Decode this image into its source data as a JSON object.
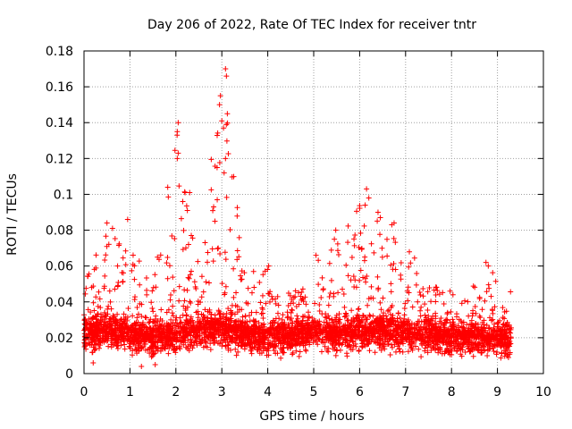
{
  "chart_data": {
    "type": "scatter",
    "title": "Day 206 of 2022, Rate Of TEC Index for receiver tntr",
    "xlabel": "GPS time / hours",
    "ylabel": "ROTI / TECUs",
    "xlim": [
      0,
      10
    ],
    "ylim": [
      0,
      0.18
    ],
    "xticks": [
      0,
      1,
      2,
      3,
      4,
      5,
      6,
      7,
      8,
      9,
      10
    ],
    "yticks": [
      0,
      0.02,
      0.04,
      0.06,
      0.08,
      0.1,
      0.12,
      0.14,
      0.16,
      0.18
    ],
    "ytick_labels": [
      "0",
      "0.02",
      "0.04",
      "0.06",
      "0.08",
      "0.1",
      "0.12",
      "0.14",
      "0.16",
      "0.18"
    ],
    "xtick_labels": [
      "0",
      "1",
      "2",
      "3",
      "4",
      "5",
      "6",
      "7",
      "8",
      "9",
      "10"
    ],
    "grid": true,
    "marker": "+",
    "series_color": "#ff0000",
    "x_data_range": [
      0.0,
      9.3
    ],
    "baseline_band": [
      0.008,
      0.04
    ],
    "envelope": [
      {
        "x": 0.0,
        "base": 0.022,
        "peak": 0.055
      },
      {
        "x": 0.5,
        "base": 0.024,
        "peak": 0.082
      },
      {
        "x": 1.0,
        "base": 0.022,
        "peak": 0.074
      },
      {
        "x": 1.5,
        "base": 0.019,
        "peak": 0.05
      },
      {
        "x": 2.0,
        "base": 0.022,
        "peak": 0.14
      },
      {
        "x": 2.5,
        "base": 0.024,
        "peak": 0.06
      },
      {
        "x": 3.0,
        "base": 0.026,
        "peak": 0.17
      },
      {
        "x": 3.5,
        "base": 0.022,
        "peak": 0.06
      },
      {
        "x": 4.0,
        "base": 0.021,
        "peak": 0.06
      },
      {
        "x": 4.5,
        "base": 0.021,
        "peak": 0.045
      },
      {
        "x": 5.0,
        "base": 0.023,
        "peak": 0.066
      },
      {
        "x": 5.5,
        "base": 0.022,
        "peak": 0.08
      },
      {
        "x": 6.0,
        "base": 0.023,
        "peak": 0.102
      },
      {
        "x": 6.5,
        "base": 0.023,
        "peak": 0.082
      },
      {
        "x": 7.0,
        "base": 0.022,
        "peak": 0.078
      },
      {
        "x": 7.5,
        "base": 0.021,
        "peak": 0.05
      },
      {
        "x": 8.0,
        "base": 0.02,
        "peak": 0.046
      },
      {
        "x": 8.5,
        "base": 0.02,
        "peak": 0.05
      },
      {
        "x": 8.8,
        "base": 0.02,
        "peak": 0.062
      },
      {
        "x": 9.3,
        "base": 0.019,
        "peak": 0.046
      }
    ],
    "notable_points": [
      {
        "x": 3.08,
        "y": 0.17
      },
      {
        "x": 3.1,
        "y": 0.166
      },
      {
        "x": 2.97,
        "y": 0.155
      },
      {
        "x": 2.95,
        "y": 0.15
      },
      {
        "x": 3.0,
        "y": 0.141
      },
      {
        "x": 3.12,
        "y": 0.145
      },
      {
        "x": 2.05,
        "y": 0.14
      },
      {
        "x": 2.03,
        "y": 0.135
      },
      {
        "x": 2.05,
        "y": 0.123
      },
      {
        "x": 2.03,
        "y": 0.12
      },
      {
        "x": 3.05,
        "y": 0.112
      },
      {
        "x": 3.08,
        "y": 0.12
      },
      {
        "x": 2.2,
        "y": 0.101
      },
      {
        "x": 2.3,
        "y": 0.101
      },
      {
        "x": 2.15,
        "y": 0.096
      },
      {
        "x": 2.25,
        "y": 0.091
      },
      {
        "x": 2.9,
        "y": 0.097
      },
      {
        "x": 2.85,
        "y": 0.085
      },
      {
        "x": 6.15,
        "y": 0.103
      },
      {
        "x": 6.2,
        "y": 0.098
      },
      {
        "x": 6.12,
        "y": 0.094
      },
      {
        "x": 6.4,
        "y": 0.09
      },
      {
        "x": 6.45,
        "y": 0.087
      },
      {
        "x": 6.7,
        "y": 0.083
      },
      {
        "x": 6.75,
        "y": 0.084
      },
      {
        "x": 0.95,
        "y": 0.086
      },
      {
        "x": 0.5,
        "y": 0.084
      },
      {
        "x": 0.62,
        "y": 0.081
      },
      {
        "x": 5.48,
        "y": 0.08
      },
      {
        "x": 5.45,
        "y": 0.075
      },
      {
        "x": 8.75,
        "y": 0.062
      },
      {
        "x": 8.8,
        "y": 0.06
      },
      {
        "x": 4.02,
        "y": 0.06
      },
      {
        "x": 5.05,
        "y": 0.066
      },
      {
        "x": 1.25,
        "y": 0.004
      },
      {
        "x": 1.55,
        "y": 0.005
      },
      {
        "x": 0.2,
        "y": 0.006
      }
    ]
  }
}
